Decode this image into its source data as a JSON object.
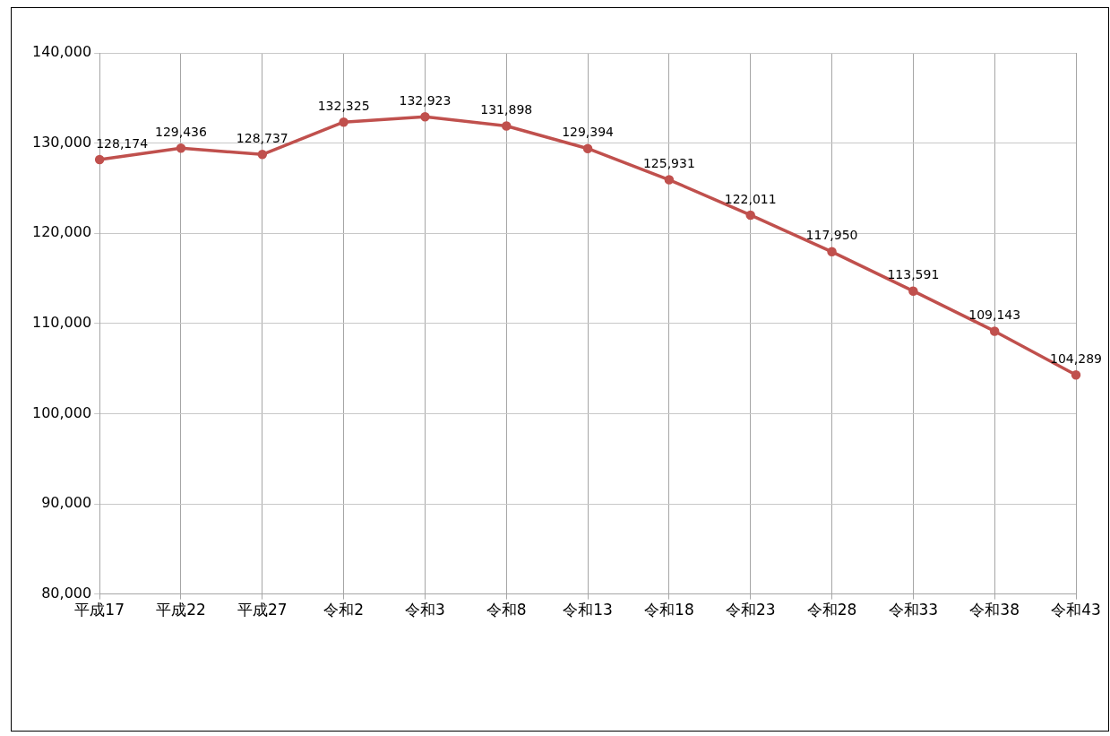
{
  "chart_data": {
    "type": "line",
    "categories": [
      "平成17",
      "平成22",
      "平成27",
      "令和2",
      "令和3",
      "令和8",
      "令和13",
      "令和18",
      "令和23",
      "令和28",
      "令和33",
      "令和38",
      "令和43"
    ],
    "series": [
      {
        "color": "#c0504d",
        "values": [
          128174,
          129436,
          128737,
          132325,
          132923,
          131898,
          129394,
          125931,
          122011,
          117950,
          113591,
          109143,
          104289
        ],
        "value_labels": [
          "128,174",
          "129,436",
          "128,737",
          "132,325",
          "132,923",
          "131,898",
          "129,394",
          "125,931",
          "122,011",
          "117,950",
          "113,591",
          "109,143",
          "104,289"
        ]
      }
    ],
    "ylim": [
      80000,
      140000
    ],
    "yticks": [
      {
        "value": 80000,
        "label": "80,000"
      },
      {
        "value": 90000,
        "label": "90,000"
      },
      {
        "value": 100000,
        "label": "100,000"
      },
      {
        "value": 110000,
        "label": "110,000"
      },
      {
        "value": 120000,
        "label": "120,000"
      },
      {
        "value": 130000,
        "label": "130,000"
      },
      {
        "value": 140000,
        "label": "140,000"
      }
    ],
    "grid": true,
    "legend": false,
    "marker": "circle",
    "line_style": "solid"
  }
}
